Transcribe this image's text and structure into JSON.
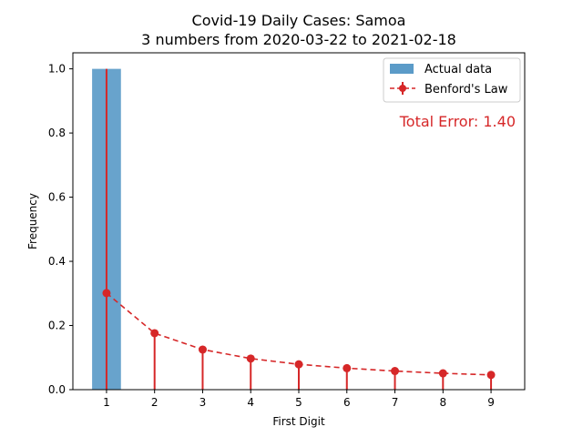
{
  "chart_data": {
    "type": "bar",
    "title": "Covid-19 Daily Cases: Samoa",
    "subtitle": "3 numbers from 2020-03-22 to 2021-02-18",
    "xlabel": "First Digit",
    "ylabel": "Frequency",
    "categories": [
      "1",
      "2",
      "3",
      "4",
      "5",
      "6",
      "7",
      "8",
      "9"
    ],
    "x": [
      1,
      2,
      3,
      4,
      5,
      6,
      7,
      8,
      9
    ],
    "ylim": [
      0,
      1.05
    ],
    "xlim": [
      0.3,
      9.7
    ],
    "y_ticks": [
      "0.0",
      "0.2",
      "0.4",
      "0.6",
      "0.8",
      "1.0"
    ],
    "grid": false,
    "legend_position": "top-right",
    "series": [
      {
        "name": "Actual data",
        "type": "bar",
        "color": "#5b9bc8",
        "values": [
          1.0,
          0,
          0,
          0,
          0,
          0,
          0,
          0,
          0
        ]
      },
      {
        "name": "Benford's Law",
        "type": "line",
        "style": "dashed-markers-stems",
        "color": "#d62728",
        "values": [
          0.301,
          0.176,
          0.125,
          0.097,
          0.079,
          0.067,
          0.058,
          0.051,
          0.046
        ],
        "error_low": [
          0.301,
          0.176,
          0.125,
          0.097,
          0.079,
          0.067,
          0.058,
          0.051,
          0.046
        ],
        "error_high": [
          0.699,
          0,
          0,
          0,
          0,
          0,
          0,
          0,
          0
        ]
      }
    ],
    "annotations": [
      {
        "text": "Total Error: 1.40",
        "color": "#d62728",
        "position": "top-right"
      }
    ]
  }
}
